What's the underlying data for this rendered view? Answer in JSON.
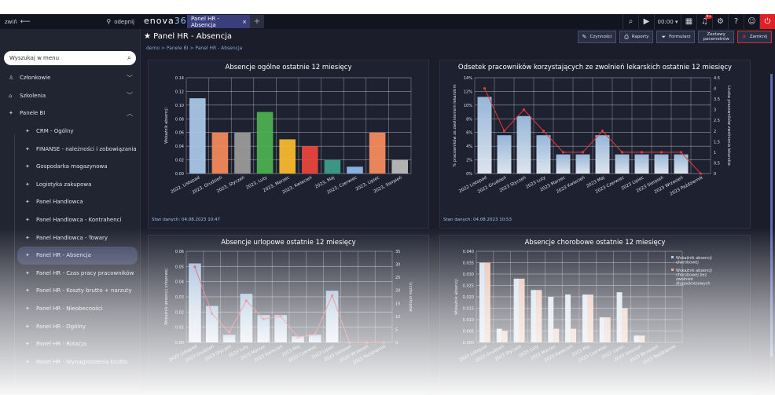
{
  "topbar": {
    "collapse_label": "zwiń",
    "unpin_label": "odepnij",
    "logo_main": "enova",
    "logo_num": "365",
    "tab_label": "Panel HR - Absencja",
    "time": "00:00",
    "notif_count": "9+"
  },
  "sidebar": {
    "search_placeholder": "Wyszukaj w menu",
    "items": [
      {
        "label": "Członkowie",
        "icon": "users-icon",
        "level": 0,
        "expand": "chevron-down-icon"
      },
      {
        "label": "Szkolenia",
        "icon": "graduation-icon",
        "level": 0,
        "expand": "chevron-down-icon"
      },
      {
        "label": "Panele BI",
        "icon": "bulb-icon",
        "level": 0,
        "expand": "chevron-up-icon"
      },
      {
        "label": "CRM - Ogólny",
        "icon": "bulb-icon",
        "level": 1
      },
      {
        "label": "FINANSE - należności i zobowiązania",
        "icon": "bulb-icon",
        "level": 1
      },
      {
        "label": "Gospodarka magazynowa",
        "icon": "bulb-icon",
        "level": 1
      },
      {
        "label": "Logistyka zakupowa",
        "icon": "bulb-icon",
        "level": 1
      },
      {
        "label": "Panel Handlowca",
        "icon": "bulb-icon",
        "level": 1
      },
      {
        "label": "Panel Handlowca - Kontrahenci",
        "icon": "bulb-icon",
        "level": 1
      },
      {
        "label": "Panel Handlowca - Towary",
        "icon": "bulb-icon",
        "level": 1
      },
      {
        "label": "Panel HR - Absencja",
        "icon": "bulb-icon",
        "level": 1,
        "active": true
      },
      {
        "label": "Panel HR - Czas pracy pracowników",
        "icon": "bulb-icon",
        "level": 1
      },
      {
        "label": "Panel HR - Koszty brutto + narzuty",
        "icon": "bulb-icon",
        "level": 1
      },
      {
        "label": "Panel HR - Nieobecności",
        "icon": "bulb-icon",
        "level": 1
      },
      {
        "label": "Panel HR - Ogólny",
        "icon": "bulb-icon",
        "level": 1
      },
      {
        "label": "Panel HR - Rotacja",
        "icon": "bulb-icon",
        "level": 1
      },
      {
        "label": "Panel HR - Wynagrodzenia brutto",
        "icon": "bulb-icon",
        "level": 1
      }
    ]
  },
  "page": {
    "title": "Panel HR - Absencja",
    "breadcrumb": "demo > Panele BI > Panel HR - Absencja",
    "buttons": {
      "czynnosci": "Czynności",
      "raporty": "Raporty",
      "formularz": "Formularz",
      "zestawy_1": "Zestawy",
      "zestawy_2": "parametrów",
      "zamknij": "Zamknij"
    }
  },
  "stan": [
    "Stan danych: 04.08.2023 10:47",
    "Stan danych: 04.08.2023 10:53"
  ],
  "colors": {
    "accent": "#3a3f7c",
    "close": "#e01f26",
    "line": "#e23a3a"
  },
  "chart_data": [
    {
      "type": "bar",
      "title": "Absencje ogólne ostatnie 12 miesięcy",
      "ylabel": "Wskaźnik absencji",
      "ylim": [
        0,
        0.14
      ],
      "yticks": [
        "0.00",
        "0.02",
        "0.04",
        "0.06",
        "0.08",
        "0.10",
        "0.12",
        "0.14"
      ],
      "categories": [
        "2022, Listopad",
        "2023, Grudzień",
        "2023, Styczeń",
        "2023, Luty",
        "2023, Marzec",
        "2023, Kwiecień",
        "2023, Maj",
        "2023, Czerwiec",
        "2023, Lipiec",
        "2023, Sierpień"
      ],
      "values": [
        0.11,
        0.06,
        0.06,
        0.09,
        0.05,
        0.04,
        0.02,
        0.01,
        0.06,
        0.02
      ],
      "colors": [
        "#a8c6e6",
        "#f28a5a",
        "#9a9a9a",
        "#4caf50",
        "#f5b82e",
        "#e8453c",
        "#3d9e88",
        "#8fb8e8",
        "#f58a5e",
        "#bbbbbb"
      ]
    },
    {
      "type": "bar",
      "title": "Odsetek pracowników korzystających ze zwolnień lekarskich ostatnie 12 miesięcy",
      "ylabel": "% pracowników ze zwolnieniem lekarskim",
      "y2label": "Liczba pracowników zwolnienia lekarskie",
      "ylim": [
        0,
        14
      ],
      "yticks": [
        "0%",
        "2%",
        "4%",
        "6%",
        "8%",
        "10%",
        "12%",
        "14%"
      ],
      "y2lim": [
        0,
        4.5
      ],
      "y2ticks": [
        "0",
        "0.5",
        "1",
        "1.5",
        "2",
        "2.5",
        "3",
        "3.5",
        "4",
        "4.5"
      ],
      "categories": [
        "2022 Listopad",
        "2022 Grudzień",
        "2023 Styczeń",
        "2023 Luty",
        "2023 Marzec",
        "2023 Kwiecień",
        "2023 Maj",
        "2023 Czerwiec",
        "2023 Lipiec",
        "2023 Sierpień",
        "2023 Wrzesień",
        "2023 Październik"
      ],
      "values": [
        11.2,
        5.6,
        8.4,
        5.6,
        2.8,
        2.8,
        5.6,
        2.8,
        2.8,
        2.8,
        2.8,
        0
      ],
      "line": [
        4,
        2,
        3,
        2,
        1,
        1,
        2,
        1,
        1,
        1,
        1,
        0
      ]
    },
    {
      "type": "bar",
      "title": "Absencje urlopowe ostatnie 12 miesięcy",
      "ylabel": "Wskaźnik absencji urlopowej",
      "y2label": "Liczba urlopów",
      "ylim": [
        0,
        0.06
      ],
      "yticks": [
        "0.00",
        "0.01",
        "0.02",
        "0.03",
        "0.04",
        "0.05",
        "0.06"
      ],
      "y2lim": [
        0,
        35
      ],
      "y2ticks": [
        "0",
        "5",
        "10",
        "15",
        "20",
        "25",
        "30",
        "35"
      ],
      "categories": [
        "2022 Listopad",
        "2023 Grudzień",
        "2023 Styczeń",
        "2023 Luty",
        "2023 Marzec",
        "2023 Kwiecień",
        "2023 Maj",
        "2023 Czerwiec",
        "2023 Lipiec",
        "2023 Sierpień",
        "2023 Wrzesień",
        "2023 Październik"
      ],
      "values": [
        0.052,
        0.024,
        0.005,
        0.032,
        0.018,
        0.018,
        0.004,
        0.005,
        0.034,
        0,
        0,
        0
      ],
      "line": [
        29,
        11,
        4,
        16,
        9,
        10,
        2,
        3,
        18,
        0,
        0,
        0
      ]
    },
    {
      "type": "bar",
      "title": "Absencje chorobowe ostatnie 12 miesięcy",
      "ylabel": "Wskaźnik absencji",
      "ylim": [
        0,
        0.04
      ],
      "yticks": [
        "0.000",
        "0.005",
        "0.010",
        "0.015",
        "0.020",
        "0.025",
        "0.030",
        "0.035",
        "0.040"
      ],
      "categories": [
        "2022 Listopad",
        "2023 Grudzień",
        "2023 Styczeń",
        "2023 Luty",
        "2023 Marzec",
        "2023 Kwiecień",
        "2023 Maj",
        "2023 Czerwiec",
        "2023 Lipiec",
        "2023 Sierpień",
        "2023 Wrzesień",
        "2023 Październik"
      ],
      "series": [
        {
          "name": "Wskaźnik absencji chorobowej",
          "values": [
            0.035,
            0.006,
            0.028,
            0.023,
            0.02,
            0.021,
            0.021,
            0.011,
            0.022,
            0.003,
            0,
            0
          ]
        },
        {
          "name": "Wskaźnik absencji chorobowej bez zwolnień długookresowych",
          "values": [
            0.035,
            0.005,
            0.028,
            0.023,
            0.006,
            0.006,
            0.021,
            0.011,
            0.015,
            0.003,
            0,
            0
          ]
        }
      ],
      "legend": "right"
    }
  ]
}
